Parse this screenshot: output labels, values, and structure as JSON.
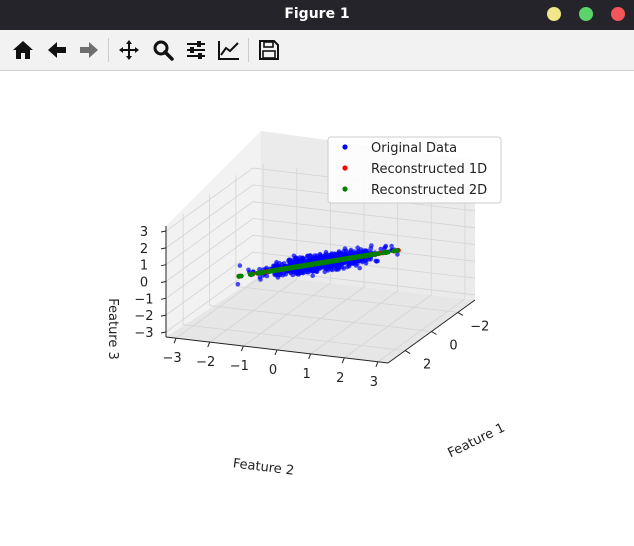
{
  "window": {
    "title": "Figure 1",
    "controls": {
      "minimize_color": "#f2e68a",
      "maximize_color": "#5ad46a",
      "close_color": "#f2555a"
    }
  },
  "toolbar": {
    "buttons": [
      {
        "name": "home-icon",
        "label": "Home"
      },
      {
        "name": "back-icon",
        "label": "Back"
      },
      {
        "name": "forward-icon",
        "label": "Forward"
      },
      {
        "name": "pan-icon",
        "label": "Pan"
      },
      {
        "name": "zoom-icon",
        "label": "Zoom"
      },
      {
        "name": "subplots-icon",
        "label": "Configure subplots"
      },
      {
        "name": "axes-icon",
        "label": "Edit axis"
      },
      {
        "name": "save-icon",
        "label": "Save"
      }
    ]
  },
  "chart_data": {
    "type": "scatter",
    "projection": "3d",
    "title": "",
    "xlabel": "Feature 1",
    "ylabel": "Feature 2",
    "zlabel": "Feature 3",
    "xticks": [
      "2",
      "0",
      "−2"
    ],
    "yticks": [
      "−3",
      "−2",
      "−1",
      "0",
      "1",
      "2",
      "3"
    ],
    "zticks": [
      "−3",
      "−2",
      "−1",
      "0",
      "1",
      "2",
      "3"
    ],
    "xlim": [
      -3.3,
      3.3
    ],
    "ylim": [
      -3.3,
      3.3
    ],
    "zlim": [
      -3.3,
      3.3
    ],
    "grid": true,
    "legend_position": "top-right",
    "series": [
      {
        "name": "Original Data",
        "color": "#0000ff",
        "n_points": 1000,
        "description": "noisy cloud around the principal direction from about (-3,-3,-3) to (3,3,3)"
      },
      {
        "name": "Reconstructed 1D",
        "color": "#ff0000",
        "n_points": 1000,
        "description": "points projected onto the first principal component line"
      },
      {
        "name": "Reconstructed 2D",
        "color": "#008000",
        "n_points": 1000,
        "description": "points projected onto the first two principal components"
      }
    ]
  }
}
